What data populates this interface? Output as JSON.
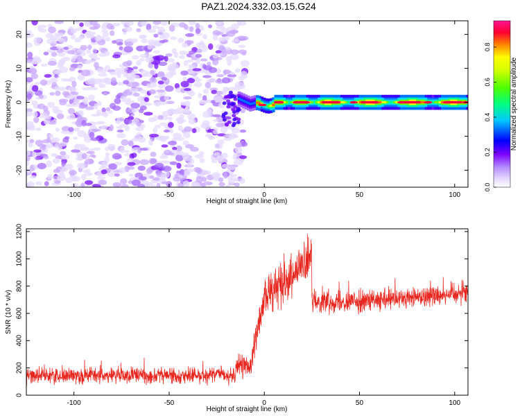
{
  "title": "PAZ1.2024.332.03.15.G24",
  "chart_data": [
    {
      "type": "heatmap",
      "xlabel": "Height of straight line (km)",
      "ylabel": "Frequency (Hz)",
      "xlim": [
        -125,
        107
      ],
      "ylim": [
        -25,
        24
      ],
      "xticks": [
        -100,
        -50,
        0,
        50,
        100
      ],
      "yticks": [
        -20,
        -10,
        0,
        10,
        20
      ],
      "colorbar": {
        "label": "Normalized spectral amplitude",
        "range": [
          0,
          0.95
        ],
        "ticks": [
          0,
          0.2,
          0.4,
          0.6,
          0.8
        ],
        "colors": [
          "#ffffff",
          "#b48cff",
          "#7a00ff",
          "#0000ff",
          "#00c8ff",
          "#00ff80",
          "#a0ff00",
          "#ffff00",
          "#ff8000",
          "#ff0040",
          "#ff1493"
        ]
      },
      "regions": [
        {
          "x_from": -125,
          "x_to": -14,
          "frequency_range": [
            -25,
            24
          ],
          "amplitude": "0.02-0.12 (noise)"
        },
        {
          "x_from": -14,
          "x_to": 107,
          "frequency": 0,
          "amplitude": "0.3-0.95 (signal)"
        }
      ],
      "grid": false
    },
    {
      "type": "line",
      "xlabel": "Height of straight line (km)",
      "ylabel": "SNR (10 * v/v)",
      "xlim": [
        -125,
        107
      ],
      "ylim": [
        0,
        1220
      ],
      "xticks": [
        -100,
        -50,
        0,
        50,
        100
      ],
      "yticks": [
        0,
        200,
        400,
        600,
        800,
        1000,
        1200
      ],
      "color": "#e8261e",
      "segments": [
        {
          "x": [
            -125,
            -15
          ],
          "mean": 145,
          "spread": 60,
          "peak": 460
        },
        {
          "x": [
            -15,
            -7
          ],
          "mean": 210,
          "spread": 80
        },
        {
          "x": [
            -7,
            0
          ],
          "start": 250,
          "end": 700,
          "spread": 120
        },
        {
          "x": [
            0,
            25
          ],
          "start": 720,
          "end": 1000,
          "spread": 150,
          "peak": 1220
        },
        {
          "x": [
            25,
            107
          ],
          "mean": 690,
          "spread": 80,
          "end": 760
        }
      ],
      "grid": false
    }
  ]
}
